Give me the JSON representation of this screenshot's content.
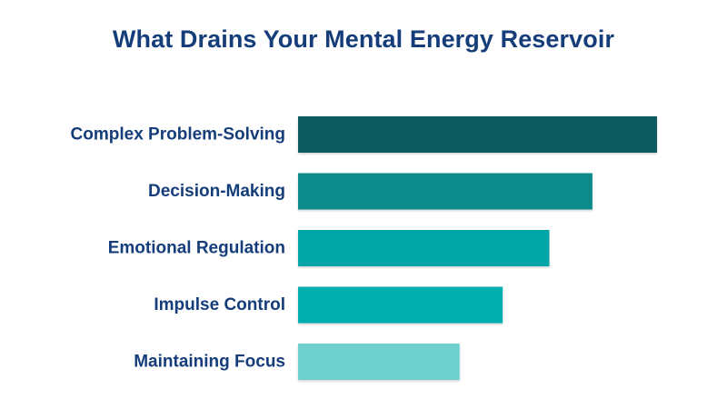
{
  "chart_data": {
    "type": "bar",
    "orientation": "horizontal",
    "title": "What Drains Your Mental Energy Reservoir",
    "xlabel": "",
    "ylabel": "",
    "grid": false,
    "legend": "none",
    "xlim": [
      0,
      100
    ],
    "categories": [
      "Complex Problem-Solving",
      "Decision-Making",
      "Emotional Regulation",
      "Impulse Control",
      "Maintaining Focus"
    ],
    "values": [
      100,
      82,
      70,
      57,
      45
    ],
    "colors": [
      "#075a5e",
      "#0b8b8b",
      "#00a6a6",
      "#00adaf",
      "#6ecfcf"
    ]
  }
}
